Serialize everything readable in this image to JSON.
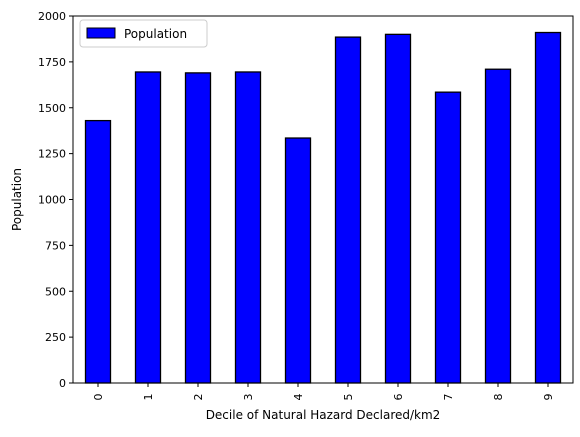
{
  "chart_data": {
    "type": "bar",
    "title": "",
    "xlabel": "Decile of Natural Hazard Declared/km2",
    "ylabel": "Population",
    "categories": [
      "0",
      "1",
      "2",
      "3",
      "4",
      "5",
      "6",
      "7",
      "8",
      "9"
    ],
    "series": [
      {
        "name": "Population",
        "values": [
          1430,
          1695,
          1690,
          1695,
          1335,
          1885,
          1900,
          1585,
          1710,
          1910
        ]
      }
    ],
    "ylim": [
      0,
      2000
    ],
    "yticks": [
      0,
      250,
      500,
      750,
      1000,
      1250,
      1500,
      1750,
      2000
    ],
    "grid": false,
    "legend_position": "top-left",
    "bar_color": "#0000ff",
    "bar_edge_color": "#000000"
  }
}
